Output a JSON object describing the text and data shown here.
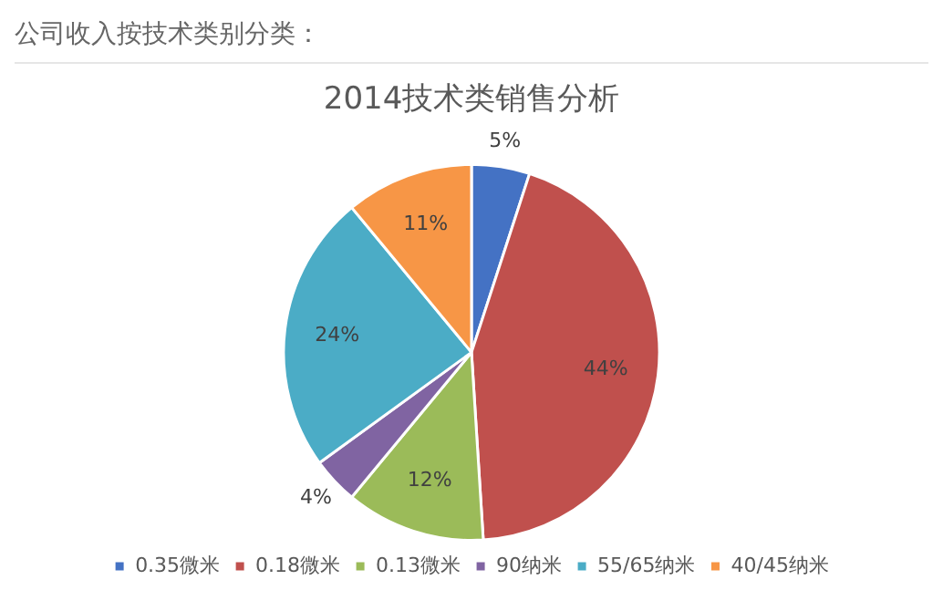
{
  "chart_data": {
    "type": "pie",
    "title": "2014技术类销售分析",
    "annotations": [
      "公司收入按技术类别分类："
    ],
    "categories": [
      "0.35微米",
      "0.18微米",
      "0.13微米",
      "90纳米",
      "55/65纳米",
      "40/45纳米"
    ],
    "values": [
      5,
      44,
      12,
      4,
      24,
      11
    ],
    "value_labels": [
      "5%",
      "44%",
      "12%",
      "4%",
      "24%",
      "11%"
    ],
    "colors": [
      "#4472c4",
      "#c0504d",
      "#9bbb59",
      "#8064a2",
      "#4bacc6",
      "#f79646"
    ],
    "legend": "bottom"
  }
}
